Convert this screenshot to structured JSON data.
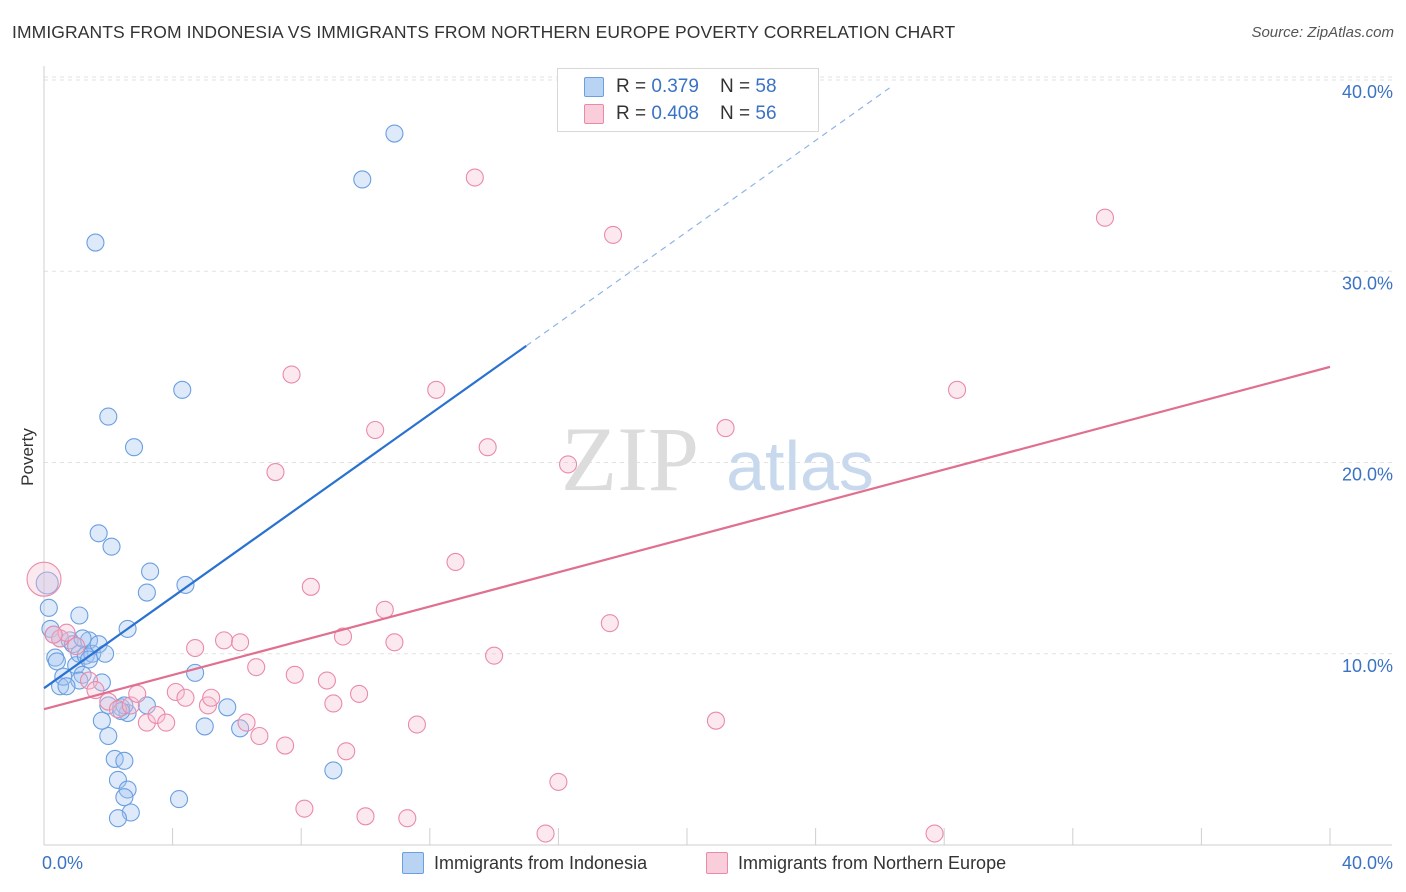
{
  "title": "IMMIGRANTS FROM INDONESIA VS IMMIGRANTS FROM NORTHERN EUROPE POVERTY CORRELATION CHART",
  "source": "Source: ZipAtlas.com",
  "watermark": {
    "zip": "ZIP",
    "atlas": "atlas"
  },
  "stats": [
    {
      "r_label": "R = ",
      "r_value": "0.379",
      "n_label": "N = ",
      "n_value": "58",
      "color": "#a9c8ef",
      "border": "#6a9fe0"
    },
    {
      "r_label": "R = ",
      "r_value": "0.408",
      "n_label": "N = ",
      "n_value": "56",
      "color": "#f7c1d2",
      "border": "#ea8aaa"
    }
  ],
  "legend": [
    {
      "label": "Immigrants from Indonesia",
      "color": "#b9d3f3",
      "border": "#6a9fe0"
    },
    {
      "label": "Immigrants from Northern Europe",
      "color": "#f9cdd9",
      "border": "#ea8aaa"
    }
  ],
  "chart_data": {
    "type": "scatter",
    "xlabel": "",
    "ylabel": "Poverty",
    "xlim": [
      0,
      40
    ],
    "ylim": [
      0,
      40
    ],
    "x_tick_labels": [
      "0.0%",
      "40.0%"
    ],
    "y_ticks": [
      10,
      20,
      30,
      40
    ],
    "y_tick_labels": [
      "10.0%",
      "20.0%",
      "30.0%",
      "40.0%"
    ],
    "grid": true,
    "series": [
      {
        "name": "Immigrants from Indonesia",
        "color": "#6a9fe0",
        "fill": "rgba(160,196,240,0.35)",
        "trend_color": "#2a72d0",
        "trend": {
          "x0": 0,
          "y0": 8.2,
          "x1": 15.0,
          "y1": 26.1,
          "dash_x1": 26.3
        },
        "points": [
          [
            0.1,
            13.7
          ],
          [
            0.15,
            12.4
          ],
          [
            0.2,
            11.3
          ],
          [
            0.3,
            11.0
          ],
          [
            0.35,
            9.8
          ],
          [
            0.4,
            9.6
          ],
          [
            0.5,
            8.3
          ],
          [
            0.6,
            8.8
          ],
          [
            0.5,
            10.8
          ],
          [
            0.8,
            10.7
          ],
          [
            0.9,
            10.5
          ],
          [
            1.0,
            9.4
          ],
          [
            1.1,
            10.0
          ],
          [
            1.2,
            8.9
          ],
          [
            1.3,
            9.9
          ],
          [
            1.4,
            10.7
          ],
          [
            1.5,
            10.0
          ],
          [
            1.1,
            8.6
          ],
          [
            1.7,
            10.5
          ],
          [
            1.9,
            10.0
          ],
          [
            1.8,
            8.5
          ],
          [
            2.0,
            7.3
          ],
          [
            2.4,
            7.2
          ],
          [
            2.6,
            6.9
          ],
          [
            2.5,
            7.3
          ],
          [
            2.0,
            5.7
          ],
          [
            2.2,
            4.5
          ],
          [
            2.5,
            4.4
          ],
          [
            2.3,
            3.4
          ],
          [
            2.6,
            2.9
          ],
          [
            2.5,
            2.5
          ],
          [
            2.7,
            1.7
          ],
          [
            2.3,
            1.4
          ],
          [
            1.1,
            12.0
          ],
          [
            2.6,
            11.3
          ],
          [
            1.6,
            31.5
          ],
          [
            1.7,
            16.3
          ],
          [
            2.1,
            15.6
          ],
          [
            2.0,
            22.4
          ],
          [
            2.8,
            20.8
          ],
          [
            3.3,
            14.3
          ],
          [
            3.2,
            13.2
          ],
          [
            4.3,
            23.8
          ],
          [
            4.4,
            13.6
          ],
          [
            4.7,
            9.0
          ],
          [
            5.0,
            6.2
          ],
          [
            5.7,
            7.2
          ],
          [
            6.1,
            6.1
          ],
          [
            4.2,
            2.4
          ],
          [
            9.0,
            3.9
          ],
          [
            9.9,
            34.8
          ],
          [
            10.9,
            37.2
          ],
          [
            1.2,
            10.8
          ],
          [
            1.4,
            9.7
          ],
          [
            0.7,
            8.3
          ],
          [
            1.8,
            6.5
          ],
          [
            2.4,
            7.0
          ],
          [
            3.2,
            7.3
          ]
        ]
      },
      {
        "name": "Immigrants from Northern Europe",
        "color": "#ea8aaa",
        "fill": "rgba(247,193,210,0.35)",
        "trend_color": "#e0708f",
        "trend": {
          "x0": 0,
          "y0": 7.1,
          "x1": 40,
          "y1": 25.0
        },
        "points": [
          [
            0.0,
            13.9
          ],
          [
            0.5,
            10.8
          ],
          [
            0.7,
            11.1
          ],
          [
            1.4,
            8.6
          ],
          [
            1.6,
            8.1
          ],
          [
            2.0,
            7.5
          ],
          [
            2.3,
            7.1
          ],
          [
            2.7,
            7.3
          ],
          [
            2.9,
            7.9
          ],
          [
            3.2,
            6.4
          ],
          [
            3.5,
            6.8
          ],
          [
            3.8,
            6.4
          ],
          [
            4.1,
            8.0
          ],
          [
            4.4,
            7.7
          ],
          [
            4.7,
            10.3
          ],
          [
            5.1,
            7.3
          ],
          [
            5.2,
            7.7
          ],
          [
            5.6,
            10.7
          ],
          [
            6.1,
            10.6
          ],
          [
            6.3,
            6.4
          ],
          [
            6.6,
            9.3
          ],
          [
            6.7,
            5.7
          ],
          [
            7.2,
            19.5
          ],
          [
            7.5,
            5.2
          ],
          [
            7.7,
            24.6
          ],
          [
            7.8,
            8.9
          ],
          [
            8.1,
            1.9
          ],
          [
            8.3,
            13.5
          ],
          [
            8.8,
            8.6
          ],
          [
            9.0,
            7.4
          ],
          [
            9.3,
            10.9
          ],
          [
            9.4,
            4.9
          ],
          [
            9.8,
            7.9
          ],
          [
            10.0,
            1.5
          ],
          [
            10.3,
            21.7
          ],
          [
            10.6,
            12.3
          ],
          [
            10.9,
            10.6
          ],
          [
            11.3,
            1.4
          ],
          [
            11.6,
            6.3
          ],
          [
            12.2,
            23.8
          ],
          [
            12.8,
            14.8
          ],
          [
            13.4,
            34.9
          ],
          [
            13.8,
            20.8
          ],
          [
            14.0,
            9.9
          ],
          [
            15.6,
            0.6
          ],
          [
            16.0,
            3.3
          ],
          [
            16.3,
            19.9
          ],
          [
            17.6,
            11.6
          ],
          [
            17.7,
            31.9
          ],
          [
            20.9,
            6.5
          ],
          [
            21.2,
            21.8
          ],
          [
            27.7,
            0.6
          ],
          [
            28.4,
            23.8
          ],
          [
            33.0,
            32.8
          ],
          [
            0.3,
            11.0
          ],
          [
            1.0,
            10.4
          ]
        ]
      }
    ]
  }
}
